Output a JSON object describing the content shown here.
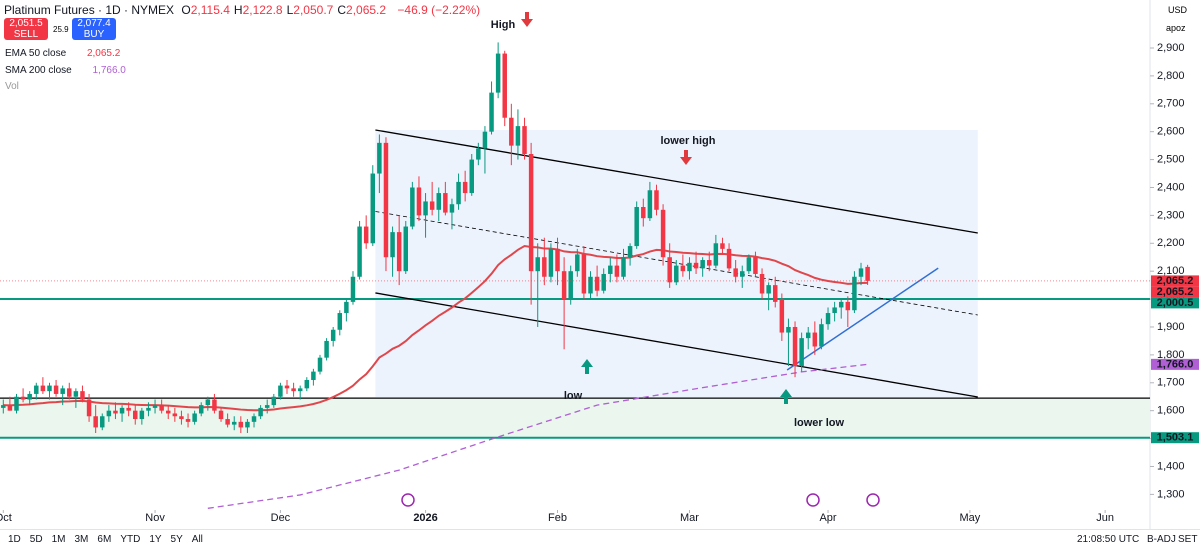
{
  "ui": {
    "symbol": "Platinum Futures · 1D · NYMEX",
    "ohlc": [
      {
        "key": "O",
        "value": "2,115.4"
      },
      {
        "key": "H",
        "value": "2,122.8"
      },
      {
        "key": "L",
        "value": "2,050.7"
      },
      {
        "key": "C",
        "value": "2,065.2"
      }
    ],
    "change": "−46.9 (−2.22%)",
    "sell": {
      "price": "2,051.5",
      "label": "SELL"
    },
    "spread": "25.9",
    "buy": {
      "price": "2,077.4",
      "label": "BUY"
    },
    "indicators": [
      {
        "name": "EMA 50 close",
        "value": "2,065.2",
        "color": "#f23645"
      },
      {
        "name": "SMA 200 close",
        "value": "1,766.0",
        "color": "#b05fd4"
      },
      {
        "name": "Vol"
      }
    ],
    "currency": "USD",
    "scale_menu": "apoz",
    "annotations": {
      "high": "High",
      "lower_high": "lower high",
      "low": "low",
      "lower_low": "lower low"
    },
    "ranges": [
      "1D",
      "5D",
      "1M",
      "3M",
      "6M",
      "YTD",
      "1Y",
      "5Y",
      "All"
    ],
    "clock": "21:08:50 UTC",
    "adj": "B-ADJ",
    "set": "SET"
  },
  "chart_data": {
    "type": "candlestick",
    "up_color": "#089981",
    "down_color": "#f23645",
    "xlim": [
      -0.5,
      173.8
    ],
    "ylim": [
      1244,
      3072
    ],
    "xticks": [
      {
        "value": 0,
        "label": "Oct"
      },
      {
        "value": 23,
        "label": "Nov"
      },
      {
        "value": 42,
        "label": "Dec"
      },
      {
        "value": 64,
        "label": "2026"
      },
      {
        "value": 84,
        "label": "Feb"
      },
      {
        "value": 104,
        "label": "Mar"
      },
      {
        "value": 125,
        "label": "Apr"
      },
      {
        "value": 146.5,
        "label": "May"
      },
      {
        "value": 167,
        "label": "Jun"
      }
    ],
    "yticks": [
      {
        "value": 1300,
        "label": "1,300"
      },
      {
        "value": 1400,
        "label": "1,400"
      },
      {
        "value": 1500,
        "label": "1,500"
      },
      {
        "value": 1600,
        "label": "1,600"
      },
      {
        "value": 1700,
        "label": "1,700"
      },
      {
        "value": 1800,
        "label": "1,800"
      },
      {
        "value": 1900,
        "label": "1,900"
      },
      {
        "value": 2000,
        "label": "2,000"
      },
      {
        "value": 2100,
        "label": "2,100"
      },
      {
        "value": 2200,
        "label": "2,200"
      },
      {
        "value": 2300,
        "label": "2,300"
      },
      {
        "value": 2400,
        "label": "2,400"
      },
      {
        "value": 2500,
        "label": "2,500"
      },
      {
        "value": 2600,
        "label": "2,600"
      },
      {
        "value": 2700,
        "label": "2,700"
      },
      {
        "value": 2800,
        "label": "2,800"
      },
      {
        "value": 2900,
        "label": "2,900"
      }
    ],
    "candles": [
      [
        1610,
        1640,
        1590,
        1620
      ],
      [
        1620,
        1650,
        1600,
        1600
      ],
      [
        1600,
        1660,
        1590,
        1650
      ],
      [
        1650,
        1680,
        1630,
        1640
      ],
      [
        1640,
        1670,
        1620,
        1660
      ],
      [
        1660,
        1700,
        1640,
        1690
      ],
      [
        1690,
        1720,
        1660,
        1670
      ],
      [
        1670,
        1700,
        1640,
        1690
      ],
      [
        1690,
        1710,
        1650,
        1660
      ],
      [
        1660,
        1690,
        1620,
        1680
      ],
      [
        1680,
        1700,
        1640,
        1650
      ],
      [
        1650,
        1680,
        1610,
        1670
      ],
      [
        1670,
        1690,
        1630,
        1640
      ],
      [
        1640,
        1660,
        1560,
        1580
      ],
      [
        1580,
        1620,
        1520,
        1540
      ],
      [
        1540,
        1590,
        1530,
        1580
      ],
      [
        1580,
        1620,
        1560,
        1600
      ],
      [
        1600,
        1630,
        1570,
        1590
      ],
      [
        1590,
        1620,
        1560,
        1610
      ],
      [
        1610,
        1630,
        1580,
        1600
      ],
      [
        1600,
        1620,
        1550,
        1570
      ],
      [
        1570,
        1610,
        1550,
        1600
      ],
      [
        1600,
        1630,
        1580,
        1610
      ],
      [
        1610,
        1640,
        1590,
        1620
      ],
      [
        1620,
        1640,
        1590,
        1600
      ],
      [
        1600,
        1620,
        1570,
        1590
      ],
      [
        1590,
        1610,
        1560,
        1580
      ],
      [
        1580,
        1600,
        1550,
        1570
      ],
      [
        1570,
        1590,
        1540,
        1560
      ],
      [
        1560,
        1600,
        1550,
        1590
      ],
      [
        1590,
        1630,
        1580,
        1620
      ],
      [
        1620,
        1650,
        1600,
        1640
      ],
      [
        1640,
        1660,
        1590,
        1600
      ],
      [
        1600,
        1610,
        1560,
        1570
      ],
      [
        1570,
        1590,
        1540,
        1550
      ],
      [
        1550,
        1580,
        1530,
        1560
      ],
      [
        1560,
        1580,
        1520,
        1540
      ],
      [
        1540,
        1570,
        1520,
        1560
      ],
      [
        1560,
        1590,
        1540,
        1580
      ],
      [
        1580,
        1620,
        1570,
        1610
      ],
      [
        1610,
        1640,
        1590,
        1620
      ],
      [
        1620,
        1660,
        1610,
        1650
      ],
      [
        1650,
        1700,
        1640,
        1690
      ],
      [
        1690,
        1710,
        1660,
        1680
      ],
      [
        1680,
        1700,
        1650,
        1670
      ],
      [
        1670,
        1690,
        1640,
        1680
      ],
      [
        1680,
        1720,
        1670,
        1710
      ],
      [
        1710,
        1750,
        1690,
        1740
      ],
      [
        1740,
        1800,
        1730,
        1790
      ],
      [
        1790,
        1860,
        1780,
        1850
      ],
      [
        1850,
        1900,
        1830,
        1890
      ],
      [
        1890,
        1960,
        1870,
        1950
      ],
      [
        1950,
        2000,
        1920,
        1990
      ],
      [
        1990,
        2100,
        1980,
        2080
      ],
      [
        2080,
        2280,
        2070,
        2260
      ],
      [
        2260,
        2300,
        2180,
        2200
      ],
      [
        2200,
        2480,
        2190,
        2450
      ],
      [
        2450,
        2590,
        2380,
        2560
      ],
      [
        2560,
        2580,
        2100,
        2150
      ],
      [
        2150,
        2260,
        2080,
        2240
      ],
      [
        2240,
        2300,
        2050,
        2100
      ],
      [
        2100,
        2280,
        2090,
        2260
      ],
      [
        2260,
        2420,
        2250,
        2400
      ],
      [
        2400,
        2440,
        2280,
        2300
      ],
      [
        2300,
        2380,
        2220,
        2350
      ],
      [
        2350,
        2420,
        2300,
        2320
      ],
      [
        2320,
        2400,
        2280,
        2380
      ],
      [
        2380,
        2420,
        2300,
        2310
      ],
      [
        2310,
        2360,
        2250,
        2340
      ],
      [
        2340,
        2450,
        2320,
        2420
      ],
      [
        2420,
        2460,
        2350,
        2380
      ],
      [
        2380,
        2520,
        2370,
        2500
      ],
      [
        2500,
        2560,
        2480,
        2540
      ],
      [
        2540,
        2620,
        2450,
        2600
      ],
      [
        2600,
        2780,
        2590,
        2740
      ],
      [
        2740,
        2920,
        2720,
        2880
      ],
      [
        2880,
        2890,
        2620,
        2650
      ],
      [
        2650,
        2700,
        2480,
        2550
      ],
      [
        2550,
        2680,
        2500,
        2620
      ],
      [
        2620,
        2650,
        2500,
        2520
      ],
      [
        2520,
        2560,
        1980,
        2100
      ],
      [
        2100,
        2200,
        1900,
        2150
      ],
      [
        2150,
        2220,
        2050,
        2080
      ],
      [
        2080,
        2200,
        2060,
        2180
      ],
      [
        2180,
        2220,
        2050,
        2100
      ],
      [
        2100,
        2150,
        1820,
        2000
      ],
      [
        2000,
        2120,
        1980,
        2100
      ],
      [
        2100,
        2180,
        2080,
        2160
      ],
      [
        2160,
        2190,
        2000,
        2020
      ],
      [
        2020,
        2100,
        2000,
        2080
      ],
      [
        2080,
        2120,
        2010,
        2030
      ],
      [
        2030,
        2110,
        2020,
        2090
      ],
      [
        2090,
        2150,
        2060,
        2120
      ],
      [
        2120,
        2160,
        2060,
        2080
      ],
      [
        2080,
        2180,
        2070,
        2150
      ],
      [
        2150,
        2200,
        2120,
        2190
      ],
      [
        2190,
        2350,
        2180,
        2330
      ],
      [
        2330,
        2360,
        2260,
        2290
      ],
      [
        2290,
        2420,
        2280,
        2390
      ],
      [
        2390,
        2410,
        2300,
        2320
      ],
      [
        2320,
        2340,
        2120,
        2150
      ],
      [
        2150,
        2200,
        2040,
        2060
      ],
      [
        2060,
        2140,
        2050,
        2120
      ],
      [
        2120,
        2160,
        2080,
        2100
      ],
      [
        2100,
        2150,
        2070,
        2130
      ],
      [
        2130,
        2170,
        2090,
        2110
      ],
      [
        2110,
        2150,
        2080,
        2140
      ],
      [
        2140,
        2170,
        2100,
        2120
      ],
      [
        2120,
        2230,
        2110,
        2200
      ],
      [
        2200,
        2220,
        2160,
        2180
      ],
      [
        2180,
        2200,
        2100,
        2110
      ],
      [
        2110,
        2140,
        2060,
        2080
      ],
      [
        2080,
        2120,
        2040,
        2100
      ],
      [
        2100,
        2160,
        2090,
        2150
      ],
      [
        2150,
        2170,
        2080,
        2090
      ],
      [
        2090,
        2110,
        2000,
        2020
      ],
      [
        2020,
        2060,
        1960,
        2050
      ],
      [
        2050,
        2080,
        1970,
        1990
      ],
      [
        2000,
        2020,
        1850,
        1880
      ],
      [
        1880,
        1930,
        1760,
        1900
      ],
      [
        1900,
        1920,
        1720,
        1760
      ],
      [
        1760,
        1880,
        1740,
        1860
      ],
      [
        1860,
        1900,
        1820,
        1880
      ],
      [
        1880,
        1920,
        1800,
        1830
      ],
      [
        1830,
        1930,
        1820,
        1910
      ],
      [
        1910,
        1970,
        1890,
        1950
      ],
      [
        1950,
        1990,
        1920,
        1970
      ],
      [
        1970,
        2000,
        1930,
        1990
      ],
      [
        1990,
        2010,
        1900,
        1960
      ],
      [
        1960,
        2100,
        1950,
        2080
      ],
      [
        2080,
        2130,
        2050,
        2110
      ],
      [
        2115.4,
        2122.8,
        2050.7,
        2065.2
      ]
    ],
    "sma_200": {
      "x": [
        31,
        45,
        60,
        75,
        90,
        105.6,
        121,
        131
      ],
      "values": [
        1250,
        1298,
        1387,
        1506,
        1620,
        1681,
        1739,
        1766
      ],
      "color": "#b05fd4"
    },
    "ema_color": "#e0474c",
    "channel": {
      "x": [
        56.4,
        147.7
      ],
      "upper": [
        2606,
        2237
      ],
      "middle": [
        2314,
        1943
      ],
      "lower": [
        2022,
        1649
      ]
    },
    "trendline": {
      "x": [
        118.8,
        141.7
      ],
      "values": [
        1746,
        2111
      ],
      "color": "#2f6fd6"
    },
    "levels": [
      {
        "value": 2000.5,
        "color": "#089981"
      },
      {
        "value": 1645,
        "color": "#000000"
      },
      {
        "value": 1503.1,
        "color": "#089981"
      }
    ],
    "price_markers": [
      {
        "value": 2065.2,
        "label": "2,065.2",
        "color": "#f23645"
      },
      {
        "value": 2065.2,
        "label": "2,065.2",
        "color": "#f23645"
      },
      {
        "value": 2000.5,
        "label": "2,000.5",
        "color": "#089981"
      },
      {
        "value": 1766.0,
        "label": "1,766.0",
        "color": "#b05fd4"
      },
      {
        "value": 1503.1,
        "label": "1,503.1",
        "color": "#089981"
      }
    ]
  }
}
